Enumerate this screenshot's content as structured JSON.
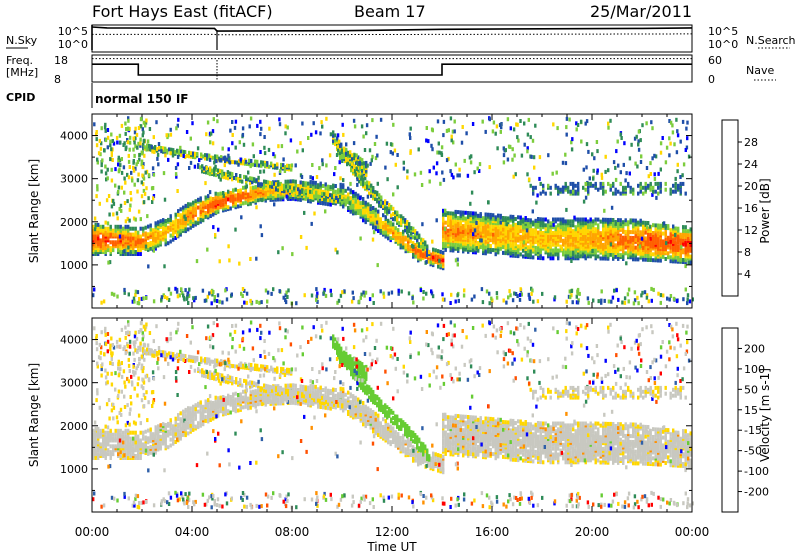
{
  "header": {
    "station": "Fort Hays East (fitACF)",
    "beam": "Beam 17",
    "date": "25/Mar/2011"
  },
  "noise_panel": {
    "left_label": "N.Sky",
    "left_ticks": [
      "10^5",
      "10^0"
    ],
    "right_label": "N.Search",
    "right_ticks": [
      "10^5",
      "10^0"
    ]
  },
  "freq_panel": {
    "left_label_line1": "Freq.",
    "left_label_line2": "[MHz]",
    "left_ticks": [
      "18",
      "8"
    ],
    "right_label": "Nave",
    "right_ticks": [
      "60",
      "0"
    ]
  },
  "cpid": {
    "label": "CPID",
    "value": "normal 150 IF"
  },
  "x_axis": {
    "title": "Time UT",
    "ticks": [
      "00:00",
      "04:00",
      "08:00",
      "12:00",
      "16:00",
      "20:00",
      "00:00"
    ]
  },
  "power_panel": {
    "ylabel": "Slant Range [km]",
    "colorbar_label": "Power [dB]",
    "colorbar_ticks": [
      "28",
      "24",
      "20",
      "16",
      "12",
      "8",
      "4"
    ],
    "colors": [
      "#0000ff",
      "#1e4ea8",
      "#2e8b57",
      "#7ccd3c",
      "#ffd700",
      "#ffa500",
      "#ff6000",
      "#ff0000"
    ]
  },
  "velocity_panel": {
    "ylabel": "Slant Range [km]",
    "colorbar_label": "Velocity [m s-1]",
    "colorbar_ticks": [
      "200",
      "100",
      "50",
      "15",
      "-15",
      "-50",
      "-100",
      "-200"
    ],
    "colors": [
      "#0000ff",
      "#2e5fa8",
      "#2e8b57",
      "#66cc33",
      "#c8c8c0",
      "#ffd700",
      "#ff9000",
      "#ff5000",
      "#ff0000"
    ]
  },
  "chart_data": [
    {
      "type": "line",
      "name": "Noise (N.Sky / N.Search)",
      "x_range_hours": [
        0,
        24
      ],
      "series": [
        {
          "name": "N.Sky",
          "style": "solid",
          "x": [
            0,
            0.6,
            4.9,
            5.0,
            10,
            14,
            18,
            22,
            24
          ],
          "y_log10": [
            5.0,
            4.8,
            4.7,
            4.1,
            4.2,
            4.5,
            4.6,
            4.7,
            4.8
          ]
        },
        {
          "name": "N.Search",
          "style": "dotted",
          "x": [
            0,
            4.9,
            5.0,
            14,
            24
          ],
          "y_log10": [
            3.4,
            3.4,
            3.3,
            3.4,
            3.5
          ]
        }
      ],
      "ylim_log10": [
        0,
        5
      ]
    },
    {
      "type": "line",
      "name": "Frequency / Nave",
      "x_range_hours": [
        0,
        24
      ],
      "series": [
        {
          "name": "Freq.",
          "style": "solid",
          "unit": "MHz",
          "x": [
            0,
            1.85,
            1.85,
            14.0,
            14.0,
            24
          ],
          "y": [
            15,
            15,
            10.5,
            10.5,
            15,
            15
          ]
        },
        {
          "name": "Nave",
          "style": "dotted",
          "x": [
            0,
            24
          ],
          "y": [
            56,
            56
          ]
        }
      ],
      "ylim": [
        8,
        18
      ],
      "y2lim": [
        0,
        60
      ]
    },
    {
      "type": "heatmap",
      "name": "Power",
      "xlabel": "Time UT",
      "ylabel": "Slant Range [km]",
      "x_range_hours": [
        0,
        24
      ],
      "ylim": [
        0,
        4500
      ],
      "yticks": [
        1000,
        2000,
        3000,
        4000
      ],
      "zlabel": "Power [dB]",
      "zlim": [
        0,
        32
      ],
      "bands": [
        {
          "x": [
            0.0,
            2.0,
            3.0,
            4.0,
            5.0,
            6.0,
            7.0,
            8.0,
            9.0,
            10.0,
            11.0,
            12.0,
            13.0,
            14.0
          ],
          "range_center": [
            1650,
            1600,
            1850,
            2250,
            2500,
            2650,
            2750,
            2800,
            2720,
            2650,
            2250,
            1800,
            1350,
            1150
          ],
          "half_width": [
            350,
            300,
            300,
            300,
            220,
            220,
            200,
            220,
            230,
            250,
            250,
            220,
            200,
            180
          ],
          "peak_db": [
            28,
            24,
            20,
            24,
            28,
            26,
            22,
            20,
            18,
            16,
            18,
            22,
            26,
            28
          ]
        },
        {
          "x": [
            14.0,
            16.0,
            18.0,
            20.0,
            22.0,
            24.0
          ],
          "range_center": [
            1850,
            1750,
            1650,
            1650,
            1620,
            1500
          ],
          "half_width": [
            450,
            450,
            450,
            450,
            450,
            400
          ],
          "peak_db": [
            24,
            22,
            20,
            22,
            26,
            28
          ]
        }
      ]
    },
    {
      "type": "heatmap",
      "name": "Velocity",
      "xlabel": "Time UT",
      "ylabel": "Slant Range [km]",
      "x_range_hours": [
        0,
        24
      ],
      "ylim": [
        0,
        4500
      ],
      "yticks": [
        1000,
        2000,
        3000,
        4000
      ],
      "zlabel": "Velocity [m s-1]",
      "zlim": [
        -250,
        250
      ],
      "note_ground_scatter": "grey (-15..15) dominates main bands; green positive streak near 10:00-13:00",
      "streaks": [
        {
          "x": [
            9.6,
            10.5,
            11.5,
            12.6,
            13.5
          ],
          "range": [
            4000,
            3200,
            2500,
            1900,
            1300
          ],
          "velocity": 30
        }
      ]
    }
  ]
}
